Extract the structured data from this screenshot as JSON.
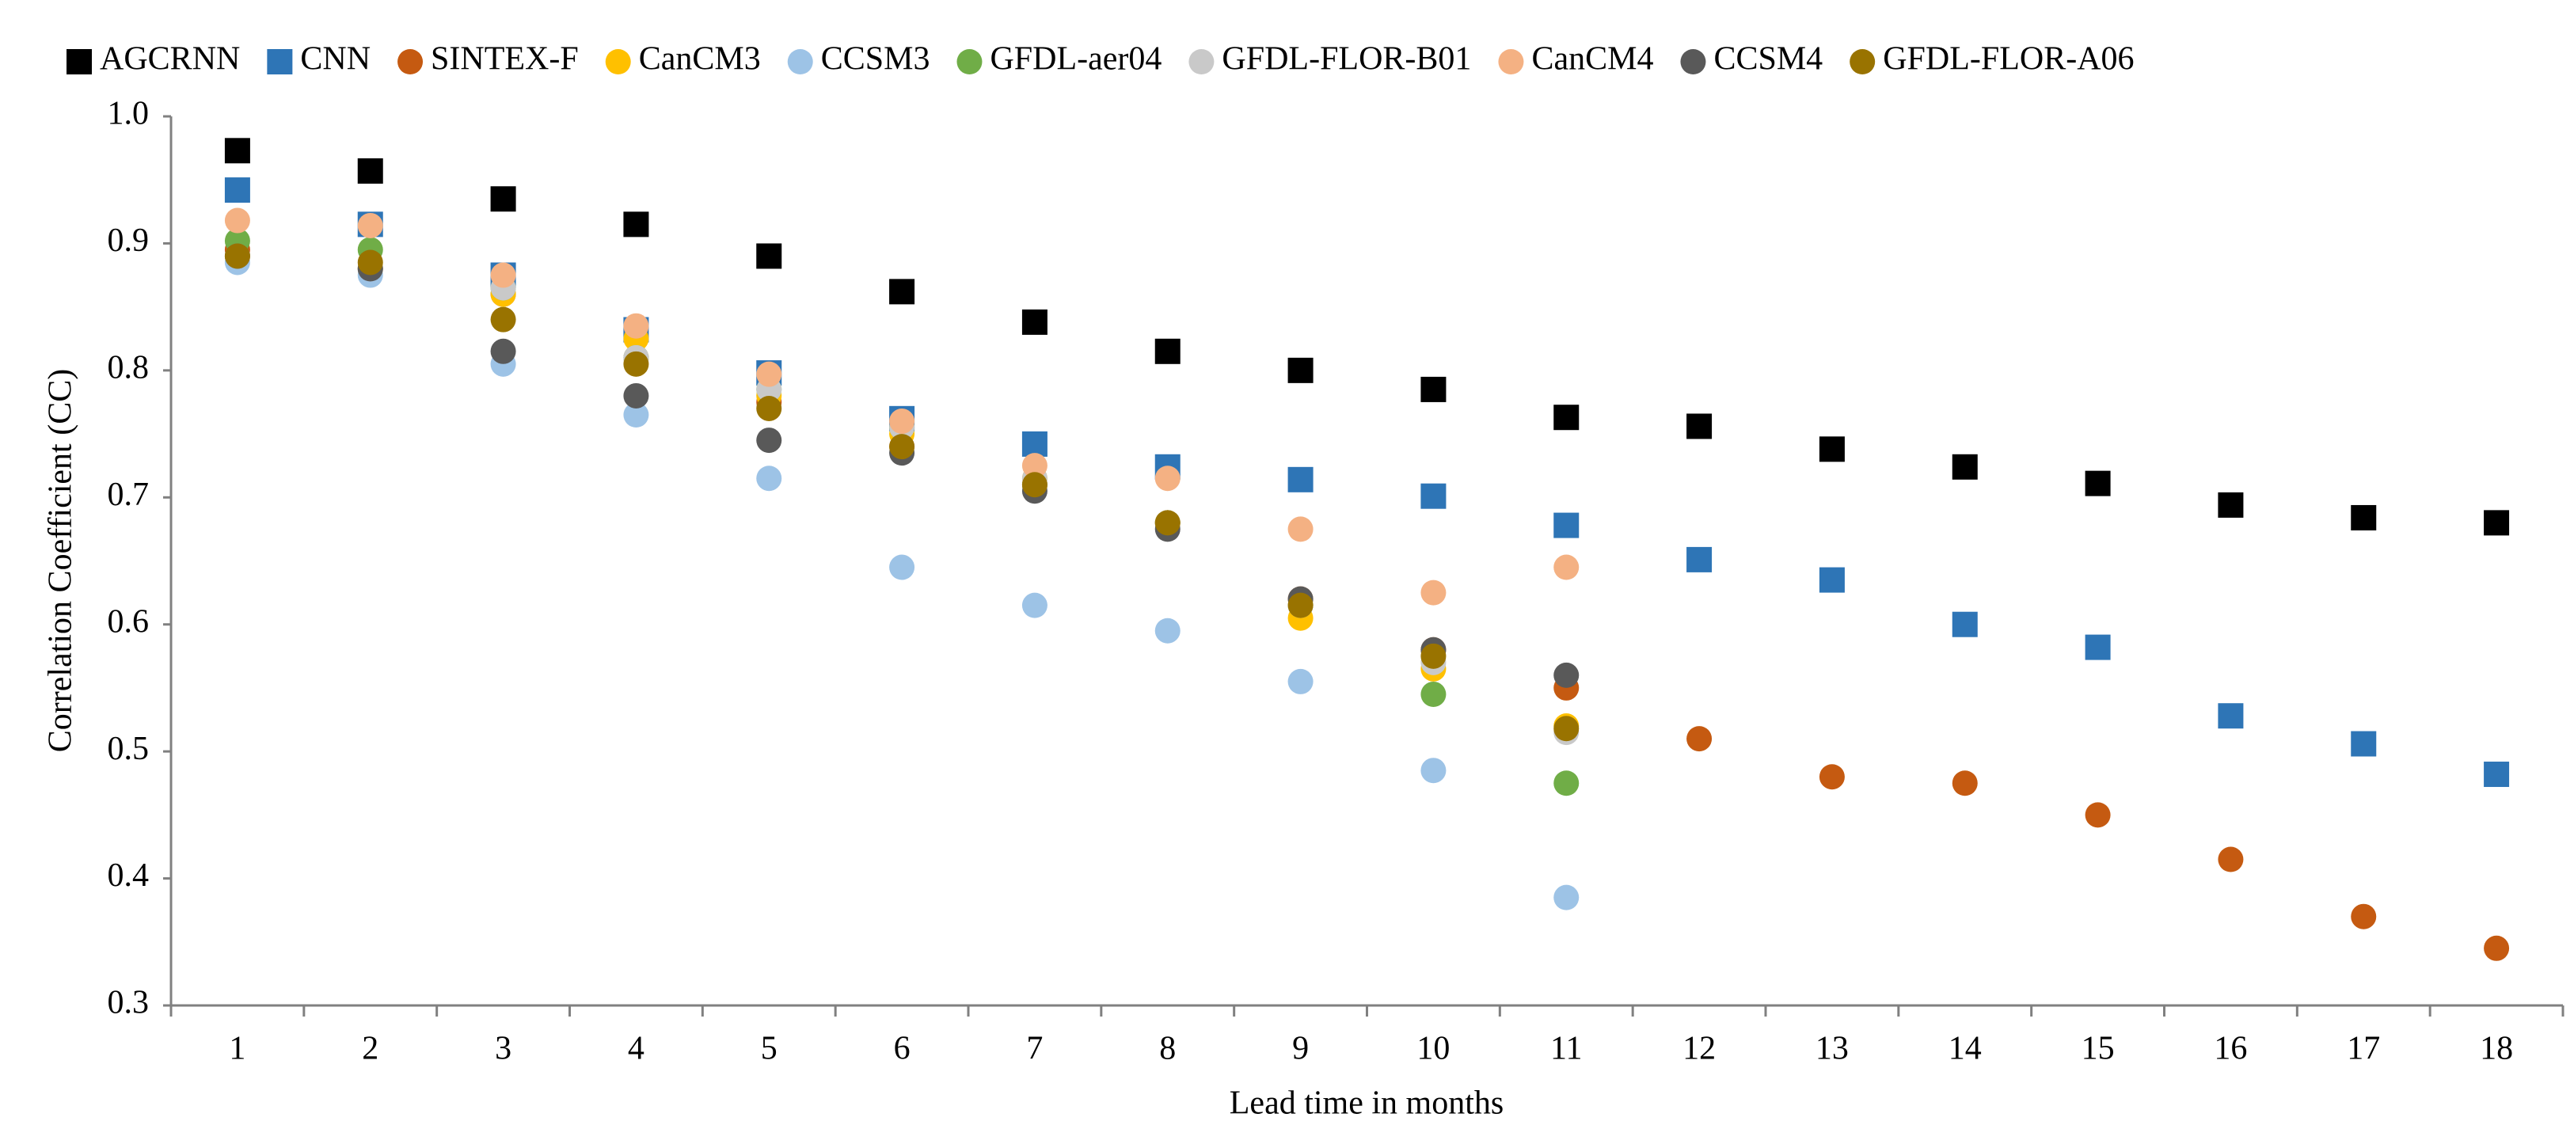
{
  "chart_data": {
    "type": "scatter",
    "x_label": "Lead time in months",
    "y_label": "Correlation Coefficient (CC)",
    "x": [
      1,
      2,
      3,
      4,
      5,
      6,
      7,
      8,
      9,
      10,
      11,
      12,
      13,
      14,
      15,
      16,
      17,
      18
    ],
    "xlim": [
      0.5,
      18.5
    ],
    "ylim": [
      0.3,
      1.0
    ],
    "yticks": [
      0.3,
      0.4,
      0.5,
      0.6,
      0.7,
      0.8,
      0.9,
      {
        "value": 1.0,
        "label": "1.0"
      }
    ],
    "legend": "top",
    "series": [
      {
        "name": "AGCRNN",
        "color": "#000000",
        "marker": "square",
        "values": [
          0.973,
          0.957,
          0.935,
          0.915,
          0.89,
          0.862,
          0.838,
          0.815,
          0.8,
          0.785,
          0.763,
          0.756,
          0.738,
          0.724,
          0.711,
          0.694,
          0.684,
          0.68
        ]
      },
      {
        "name": "CNN",
        "color": "#2e75b6",
        "marker": "square",
        "values": [
          0.942,
          0.915,
          0.875,
          0.832,
          0.798,
          0.762,
          0.742,
          0.724,
          0.714,
          0.701,
          0.678,
          0.651,
          0.635,
          0.6,
          0.582,
          0.528,
          0.506,
          0.482
        ]
      },
      {
        "name": "SINTEX-F",
        "color": "#c55a11",
        "marker": "circle",
        "values": [
          0.895,
          0.88,
          0.86,
          0.81,
          0.775,
          0.74,
          0.71,
          0.68,
          0.62,
          0.58,
          0.55,
          0.51,
          0.48,
          0.475,
          0.45,
          0.415,
          0.37,
          0.345
        ]
      },
      {
        "name": "CanCM3",
        "color": "#ffc000",
        "marker": "circle",
        "values": [
          0.89,
          0.88,
          0.86,
          0.825,
          0.78,
          0.75,
          0.715,
          0.68,
          0.605,
          0.565,
          0.52,
          null,
          null,
          null,
          null,
          null,
          null,
          null
        ]
      },
      {
        "name": "CCSM3",
        "color": "#9dc3e6",
        "marker": "circle",
        "values": [
          0.885,
          0.875,
          0.805,
          0.765,
          0.715,
          0.645,
          0.615,
          0.595,
          0.555,
          0.485,
          0.385,
          null,
          null,
          null,
          null,
          null,
          null,
          null
        ]
      },
      {
        "name": "GFDL-aer04",
        "color": "#70ad47",
        "marker": "circle",
        "values": [
          0.902,
          0.895,
          0.865,
          0.81,
          0.785,
          0.755,
          0.71,
          0.68,
          0.615,
          0.545,
          0.475,
          null,
          null,
          null,
          null,
          null,
          null,
          null
        ]
      },
      {
        "name": "GFDL-FLOR-B01",
        "color": "#c9c9c9",
        "marker": "circle",
        "values": [
          0.89,
          0.88,
          0.865,
          0.81,
          0.785,
          0.755,
          0.715,
          0.68,
          0.615,
          0.57,
          0.515,
          null,
          null,
          null,
          null,
          null,
          null,
          null
        ]
      },
      {
        "name": "CanCM4",
        "color": "#f4b183",
        "marker": "circle",
        "values": [
          0.918,
          0.914,
          0.875,
          0.835,
          0.797,
          0.76,
          0.725,
          0.715,
          0.675,
          0.625,
          0.645,
          null,
          null,
          null,
          null,
          null,
          null,
          null
        ]
      },
      {
        "name": "CCSM4",
        "color": "#595959",
        "marker": "circle",
        "values": [
          0.89,
          0.88,
          0.815,
          0.78,
          0.745,
          0.735,
          0.705,
          0.675,
          0.62,
          0.58,
          0.56,
          null,
          null,
          null,
          null,
          null,
          null,
          null
        ]
      },
      {
        "name": "GFDL-FLOR-A06",
        "color": "#997300",
        "marker": "circle",
        "values": [
          0.89,
          0.885,
          0.84,
          0.805,
          0.77,
          0.74,
          0.71,
          0.68,
          0.615,
          0.575,
          0.518,
          null,
          null,
          null,
          null,
          null,
          null,
          null
        ]
      }
    ]
  }
}
